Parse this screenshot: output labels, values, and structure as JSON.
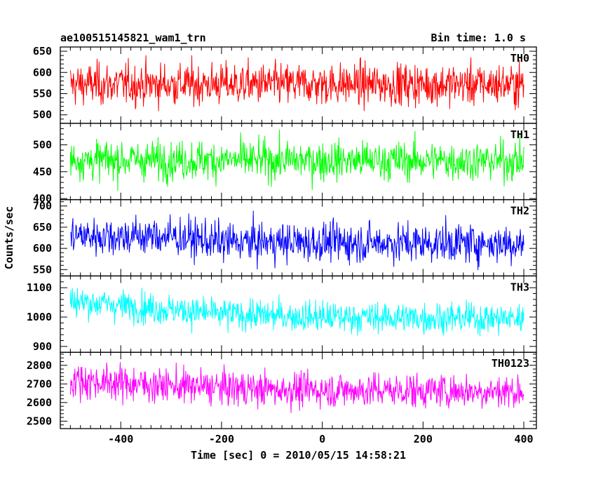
{
  "header": {
    "left": "ae100515145821_wam1_trn",
    "right": "Bin time: 1.0 s"
  },
  "chart_data": {
    "type": "line",
    "title": "ae100515145821_wam1_trn",
    "subtitle": "Bin time: 1.0 s",
    "xlabel": "Time [sec] 0 = 2010/05/15 14:58:21",
    "ylabel": "Counts/sec",
    "xlim": [
      -520,
      425
    ],
    "xticks": [
      -400,
      -200,
      0,
      200,
      400
    ],
    "x_range": [
      -500,
      400
    ],
    "bin_time": 1.0,
    "grid": false,
    "panels": [
      {
        "name": "TH0",
        "color": "#ff0000",
        "ylim": [
          480,
          660
        ],
        "yticks": [
          500,
          550,
          600,
          650
        ],
        "mean": 572,
        "amplitude": 45,
        "profile": [
          [
            -500,
            572
          ],
          [
            400,
            572
          ]
        ]
      },
      {
        "name": "TH1",
        "color": "#00ff00",
        "ylim": [
          398,
          540
        ],
        "yticks": [
          400,
          450,
          500
        ],
        "mean": 470,
        "amplitude": 33,
        "profile": [
          [
            -500,
            472
          ],
          [
            400,
            470
          ]
        ]
      },
      {
        "name": "TH2",
        "color": "#0000ff",
        "ylim": [
          535,
          715
        ],
        "yticks": [
          550,
          600,
          650,
          700
        ],
        "mean": 618,
        "amplitude": 42,
        "profile": [
          [
            -500,
            630
          ],
          [
            -300,
            628
          ],
          [
            -200,
            615
          ],
          [
            400,
            612
          ]
        ]
      },
      {
        "name": "TH3",
        "color": "#00ffff",
        "ylim": [
          880,
          1140
        ],
        "yticks": [
          900,
          1000,
          1100
        ],
        "mean": 1015,
        "amplitude": 48,
        "profile": [
          [
            -500,
            1055
          ],
          [
            -400,
            1040
          ],
          [
            -200,
            1010
          ],
          [
            0,
            1000
          ],
          [
            400,
            995
          ]
        ]
      },
      {
        "name": "TH0123",
        "color": "#ff00ff",
        "ylim": [
          2460,
          2870
        ],
        "yticks": [
          2500,
          2600,
          2700,
          2800
        ],
        "mean": 2675,
        "amplitude": 85,
        "profile": [
          [
            -500,
            2720
          ],
          [
            -300,
            2690
          ],
          [
            -100,
            2670
          ],
          [
            400,
            2660
          ]
        ]
      }
    ]
  }
}
